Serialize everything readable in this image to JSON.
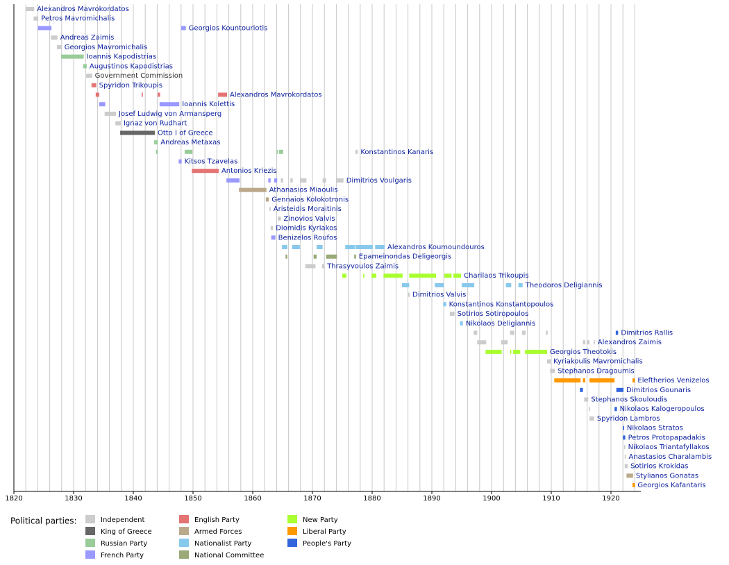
{
  "chart_data": {
    "type": "timeline",
    "xlim": [
      1820,
      1925
    ],
    "xticks": [
      1820,
      1830,
      1840,
      1850,
      1860,
      1870,
      1880,
      1890,
      1900,
      1910,
      1920
    ],
    "xgrid": [
      1822,
      1824,
      1826,
      1828,
      1830,
      1832,
      1834,
      1836,
      1838,
      1840,
      1842,
      1844,
      1846,
      1848,
      1850,
      1852,
      1854,
      1856,
      1858,
      1860,
      1862,
      1864,
      1866,
      1868,
      1870,
      1872,
      1874,
      1876,
      1878,
      1880,
      1882,
      1884,
      1886,
      1888,
      1890,
      1892,
      1894,
      1896,
      1898,
      1900,
      1902,
      1904,
      1906,
      1908,
      1910,
      1912,
      1914,
      1916,
      1918,
      1920,
      1922,
      1924
    ],
    "label_color": "#0a1e9e",
    "legend_title": "Political parties:",
    "legend": [
      {
        "name": "Independent",
        "color": "#cccccc"
      },
      {
        "name": "King of Greece",
        "color": "#666666"
      },
      {
        "name": "Russian Party",
        "color": "#99cc99"
      },
      {
        "name": "French Party",
        "color": "#9999ff"
      },
      {
        "name": "English Party",
        "color": "#e47474"
      },
      {
        "name": "Armed Forces",
        "color": "#bba98c"
      },
      {
        "name": "Nationalist Party",
        "color": "#88c8ec"
      },
      {
        "name": "National Committee",
        "color": "#99aa77"
      },
      {
        "name": "New Party",
        "color": "#aaff33"
      },
      {
        "name": "Liberal Party",
        "color": "#ff9900"
      },
      {
        "name": "People's Party",
        "color": "#3366dd"
      }
    ],
    "rows": [
      {
        "name": "Alexandros Mavrokordatos",
        "bars": [
          {
            "start": 1822.0,
            "end": 1823.4,
            "color": "#cccccc"
          }
        ]
      },
      {
        "name": "Petros Mavromichalis",
        "bars": [
          {
            "start": 1823.3,
            "end": 1824.1,
            "color": "#cccccc"
          }
        ]
      },
      {
        "name": "Georgios Kountouriotis",
        "bars": [
          {
            "start": 1824.0,
            "end": 1826.3,
            "color": "#9999ff"
          },
          {
            "start": 1848.0,
            "end": 1848.8,
            "color": "#9999ff"
          }
        ]
      },
      {
        "name": "Andreas Zaimis",
        "bars": [
          {
            "start": 1826.2,
            "end": 1827.3,
            "color": "#cccccc"
          }
        ]
      },
      {
        "name": "Georgios Mavromichalis",
        "bars": [
          {
            "start": 1827.2,
            "end": 1828.0,
            "color": "#cccccc"
          }
        ]
      },
      {
        "name": "Ioannis Kapodistrias",
        "bars": [
          {
            "start": 1827.9,
            "end": 1831.7,
            "color": "#99cc99"
          }
        ]
      },
      {
        "name": "Augustinos Kapodistrias",
        "bars": [
          {
            "start": 1831.6,
            "end": 1832.2,
            "color": "#99cc99"
          }
        ]
      },
      {
        "name": "Government Commission",
        "label_color": "#333333",
        "bars": [
          {
            "start": 1832.1,
            "end": 1833.1,
            "color": "#cccccc"
          }
        ]
      },
      {
        "name": "Spyridon Trikoupis",
        "bars": [
          {
            "start": 1833.0,
            "end": 1833.8,
            "color": "#e47474"
          }
        ]
      },
      {
        "name": "Alexandros Mavrokordatos",
        "bars": [
          {
            "start": 1833.7,
            "end": 1834.3,
            "color": "#e47474"
          },
          {
            "start": 1841.4,
            "end": 1841.6,
            "color": "#e47474"
          },
          {
            "start": 1844.1,
            "end": 1844.5,
            "color": "#e47474"
          },
          {
            "start": 1854.2,
            "end": 1855.7,
            "color": "#e47474"
          }
        ]
      },
      {
        "name": "Ioannis Kolettis",
        "bars": [
          {
            "start": 1834.3,
            "end": 1835.3,
            "color": "#9999ff"
          },
          {
            "start": 1844.4,
            "end": 1847.7,
            "color": "#9999ff"
          }
        ]
      },
      {
        "name": "Josef Ludwig von Armansperg",
        "bars": [
          {
            "start": 1835.2,
            "end": 1837.1,
            "color": "#cccccc"
          }
        ]
      },
      {
        "name": "Ignaz von Rudhart",
        "bars": [
          {
            "start": 1837.0,
            "end": 1837.9,
            "color": "#cccccc"
          }
        ]
      },
      {
        "name": "Otto I of Greece",
        "bars": [
          {
            "start": 1837.8,
            "end": 1843.6,
            "color": "#666666"
          }
        ]
      },
      {
        "name": "Andreas Metaxas",
        "bars": [
          {
            "start": 1843.5,
            "end": 1844.1,
            "color": "#99cc99"
          }
        ]
      },
      {
        "name": "Konstantinos Kanaris",
        "bars": [
          {
            "start": 1843.8,
            "end": 1844.1,
            "color": "#99cc99"
          },
          {
            "start": 1848.6,
            "end": 1849.9,
            "color": "#99cc99"
          },
          {
            "start": 1864.0,
            "end": 1864.2,
            "color": "#99cc99"
          },
          {
            "start": 1864.4,
            "end": 1865.1,
            "color": "#99cc99"
          },
          {
            "start": 1877.2,
            "end": 1877.6,
            "color": "#cccccc"
          }
        ]
      },
      {
        "name": "Kitsos Tzavelas",
        "bars": [
          {
            "start": 1847.6,
            "end": 1848.1,
            "color": "#9999ff"
          }
        ]
      },
      {
        "name": "Antonios Kriezis",
        "bars": [
          {
            "start": 1849.8,
            "end": 1854.3,
            "color": "#e47474"
          }
        ]
      },
      {
        "name": "Dimitrios Voulgaris",
        "bars": [
          {
            "start": 1855.6,
            "end": 1857.8,
            "color": "#9999ff"
          },
          {
            "start": 1862.6,
            "end": 1863.0,
            "color": "#9999ff"
          },
          {
            "start": 1863.6,
            "end": 1864.1,
            "color": "#9999ff"
          },
          {
            "start": 1864.7,
            "end": 1865.1,
            "color": "#cccccc"
          },
          {
            "start": 1866.3,
            "end": 1866.7,
            "color": "#cccccc"
          },
          {
            "start": 1867.9,
            "end": 1869.0,
            "color": "#cccccc"
          },
          {
            "start": 1871.7,
            "end": 1872.3,
            "color": "#cccccc"
          },
          {
            "start": 1874.0,
            "end": 1875.2,
            "color": "#cccccc"
          }
        ]
      },
      {
        "name": "Athanasios Miaoulis",
        "bars": [
          {
            "start": 1857.7,
            "end": 1862.3,
            "color": "#bba98c"
          }
        ]
      },
      {
        "name": "Gennaios Kolokotronis",
        "bars": [
          {
            "start": 1862.2,
            "end": 1862.7,
            "color": "#bba98c"
          }
        ]
      },
      {
        "name": "Aristeidis Moraitinis",
        "bars": [
          {
            "start": 1862.8,
            "end": 1863.0,
            "color": "#cccccc"
          }
        ]
      },
      {
        "name": "Zinovios Valvis",
        "bars": [
          {
            "start": 1864.2,
            "end": 1864.7,
            "color": "#cccccc"
          }
        ]
      },
      {
        "name": "Diomidis Kyriakos",
        "bars": [
          {
            "start": 1863.0,
            "end": 1863.4,
            "color": "#cccccc"
          }
        ]
      },
      {
        "name": "Benizelos Roufos",
        "bars": [
          {
            "start": 1863.1,
            "end": 1863.8,
            "color": "#9999ff"
          }
        ]
      },
      {
        "name": "Alexandros Koumoundouros",
        "bars": [
          {
            "start": 1864.9,
            "end": 1865.8,
            "color": "#88c8ec"
          },
          {
            "start": 1866.6,
            "end": 1867.9,
            "color": "#88c8ec"
          },
          {
            "start": 1870.7,
            "end": 1871.7,
            "color": "#88c8ec"
          },
          {
            "start": 1875.5,
            "end": 1877.1,
            "color": "#88c8ec"
          },
          {
            "start": 1877.2,
            "end": 1880.1,
            "color": "#88c8ec"
          },
          {
            "start": 1880.5,
            "end": 1882.1,
            "color": "#88c8ec"
          }
        ]
      },
      {
        "name": "Epameinondas Deligeorgis",
        "bars": [
          {
            "start": 1865.5,
            "end": 1865.8,
            "color": "#99aa77"
          },
          {
            "start": 1870.2,
            "end": 1870.7,
            "color": "#99aa77"
          },
          {
            "start": 1872.3,
            "end": 1874.1,
            "color": "#99aa77"
          },
          {
            "start": 1877.0,
            "end": 1877.3,
            "color": "#99aa77"
          }
        ]
      },
      {
        "name": "Thrasyvoulos Zaimis",
        "bars": [
          {
            "start": 1868.8,
            "end": 1870.5,
            "color": "#cccccc"
          },
          {
            "start": 1871.6,
            "end": 1872.0,
            "color": "#cccccc"
          }
        ]
      },
      {
        "name": "Charilaos Trikoupis",
        "bars": [
          {
            "start": 1875.0,
            "end": 1875.7,
            "color": "#aaff33"
          },
          {
            "start": 1878.5,
            "end": 1878.7,
            "color": "#aaff33"
          },
          {
            "start": 1879.9,
            "end": 1880.7,
            "color": "#aaff33"
          },
          {
            "start": 1881.9,
            "end": 1885.1,
            "color": "#aaff33"
          },
          {
            "start": 1886.2,
            "end": 1890.7,
            "color": "#aaff33"
          },
          {
            "start": 1892.1,
            "end": 1893.3,
            "color": "#aaff33"
          },
          {
            "start": 1893.6,
            "end": 1894.9,
            "color": "#aaff33"
          }
        ]
      },
      {
        "name": "Theodoros Deligiannis",
        "bars": [
          {
            "start": 1885.0,
            "end": 1886.2,
            "color": "#88c8ec"
          },
          {
            "start": 1890.5,
            "end": 1892.0,
            "color": "#88c8ec"
          },
          {
            "start": 1895.0,
            "end": 1897.1,
            "color": "#88c8ec"
          },
          {
            "start": 1902.4,
            "end": 1903.3,
            "color": "#88c8ec"
          },
          {
            "start": 1904.5,
            "end": 1905.2,
            "color": "#88c8ec"
          }
        ]
      },
      {
        "name": "Dimitrios Valvis",
        "bars": [
          {
            "start": 1886.0,
            "end": 1886.3,
            "color": "#cccccc"
          }
        ]
      },
      {
        "name": "Konstantinos Konstantopoulos",
        "bars": [
          {
            "start": 1891.9,
            "end": 1892.4,
            "color": "#88c8ec"
          }
        ]
      },
      {
        "name": "Sotirios Sotiropoulos",
        "bars": [
          {
            "start": 1893.0,
            "end": 1893.8,
            "color": "#cccccc"
          }
        ]
      },
      {
        "name": "Nikolaos Deligiannis",
        "bars": [
          {
            "start": 1894.7,
            "end": 1895.2,
            "color": "#88c8ec"
          }
        ]
      },
      {
        "name": "Dimitrios Rallis",
        "bars": [
          {
            "start": 1897.0,
            "end": 1897.6,
            "color": "#cccccc"
          },
          {
            "start": 1903.1,
            "end": 1903.8,
            "color": "#cccccc"
          },
          {
            "start": 1905.1,
            "end": 1905.7,
            "color": "#cccccc"
          },
          {
            "start": 1909.1,
            "end": 1909.4,
            "color": "#cccccc"
          },
          {
            "start": 1920.8,
            "end": 1921.2,
            "color": "#3366dd"
          }
        ]
      },
      {
        "name": "Alexandros Zaimis",
        "bars": [
          {
            "start": 1897.6,
            "end": 1899.1,
            "color": "#cccccc"
          },
          {
            "start": 1901.6,
            "end": 1902.7,
            "color": "#cccccc"
          },
          {
            "start": 1915.3,
            "end": 1915.7,
            "color": "#cccccc"
          },
          {
            "start": 1916.0,
            "end": 1916.4,
            "color": "#cccccc"
          },
          {
            "start": 1917.1,
            "end": 1917.3,
            "color": "#cccccc"
          }
        ]
      },
      {
        "name": "Georgios Theotokis",
        "bars": [
          {
            "start": 1899.0,
            "end": 1901.7,
            "color": "#aaff33"
          },
          {
            "start": 1903.1,
            "end": 1903.3,
            "color": "#aaff33"
          },
          {
            "start": 1903.6,
            "end": 1904.8,
            "color": "#aaff33"
          },
          {
            "start": 1905.6,
            "end": 1909.3,
            "color": "#aaff33"
          }
        ]
      },
      {
        "name": "Kyriakoulis Mavromichalis",
        "bars": [
          {
            "start": 1909.3,
            "end": 1909.9,
            "color": "#cccccc"
          }
        ]
      },
      {
        "name": "Stephanos Dragoumis",
        "bars": [
          {
            "start": 1909.8,
            "end": 1910.6,
            "color": "#cccccc"
          }
        ]
      },
      {
        "name": "Eleftherios Venizelos",
        "bars": [
          {
            "start": 1910.5,
            "end": 1914.9,
            "color": "#ff9900"
          },
          {
            "start": 1915.3,
            "end": 1915.7,
            "color": "#ff9900"
          },
          {
            "start": 1916.4,
            "end": 1920.6,
            "color": "#ff9900"
          },
          {
            "start": 1923.6,
            "end": 1924.0,
            "color": "#ff9900"
          }
        ]
      },
      {
        "name": "Dimitrios Gounaris",
        "bars": [
          {
            "start": 1914.8,
            "end": 1915.3,
            "color": "#3366dd"
          },
          {
            "start": 1920.9,
            "end": 1922.1,
            "color": "#3366dd"
          }
        ]
      },
      {
        "name": "Stephanos Skouloudis",
        "bars": [
          {
            "start": 1915.5,
            "end": 1916.2,
            "color": "#cccccc"
          }
        ]
      },
      {
        "name": "Nikolaos Kalogeropoulos",
        "bars": [
          {
            "start": 1916.3,
            "end": 1916.5,
            "color": "#cccccc"
          },
          {
            "start": 1920.6,
            "end": 1921.0,
            "color": "#3366dd"
          }
        ]
      },
      {
        "name": "Spyridon Lambros",
        "bars": [
          {
            "start": 1916.4,
            "end": 1917.2,
            "color": "#cccccc"
          }
        ]
      },
      {
        "name": "Nikolaos Stratos",
        "bars": [
          {
            "start": 1922.0,
            "end": 1922.2,
            "color": "#3366dd"
          }
        ]
      },
      {
        "name": "Petros Protopapadakis",
        "bars": [
          {
            "start": 1922.0,
            "end": 1922.4,
            "color": "#3366dd"
          }
        ]
      },
      {
        "name": "Nikolaos Triantafyllakos",
        "bars": [
          {
            "start": 1922.2,
            "end": 1922.4,
            "color": "#cccccc"
          }
        ]
      },
      {
        "name": "Anastasios Charalambis",
        "bars": [
          {
            "start": 1922.3,
            "end": 1922.5,
            "color": "#cccccc"
          }
        ]
      },
      {
        "name": "Sotirios Krokidas",
        "bars": [
          {
            "start": 1922.3,
            "end": 1922.8,
            "color": "#cccccc"
          }
        ]
      },
      {
        "name": "Stylianos Gonatas",
        "bars": [
          {
            "start": 1922.6,
            "end": 1923.7,
            "color": "#bba98c"
          }
        ]
      },
      {
        "name": "Georgios Kafantaris",
        "bars": [
          {
            "start": 1923.6,
            "end": 1924.0,
            "color": "#ff9900"
          }
        ]
      }
    ]
  }
}
